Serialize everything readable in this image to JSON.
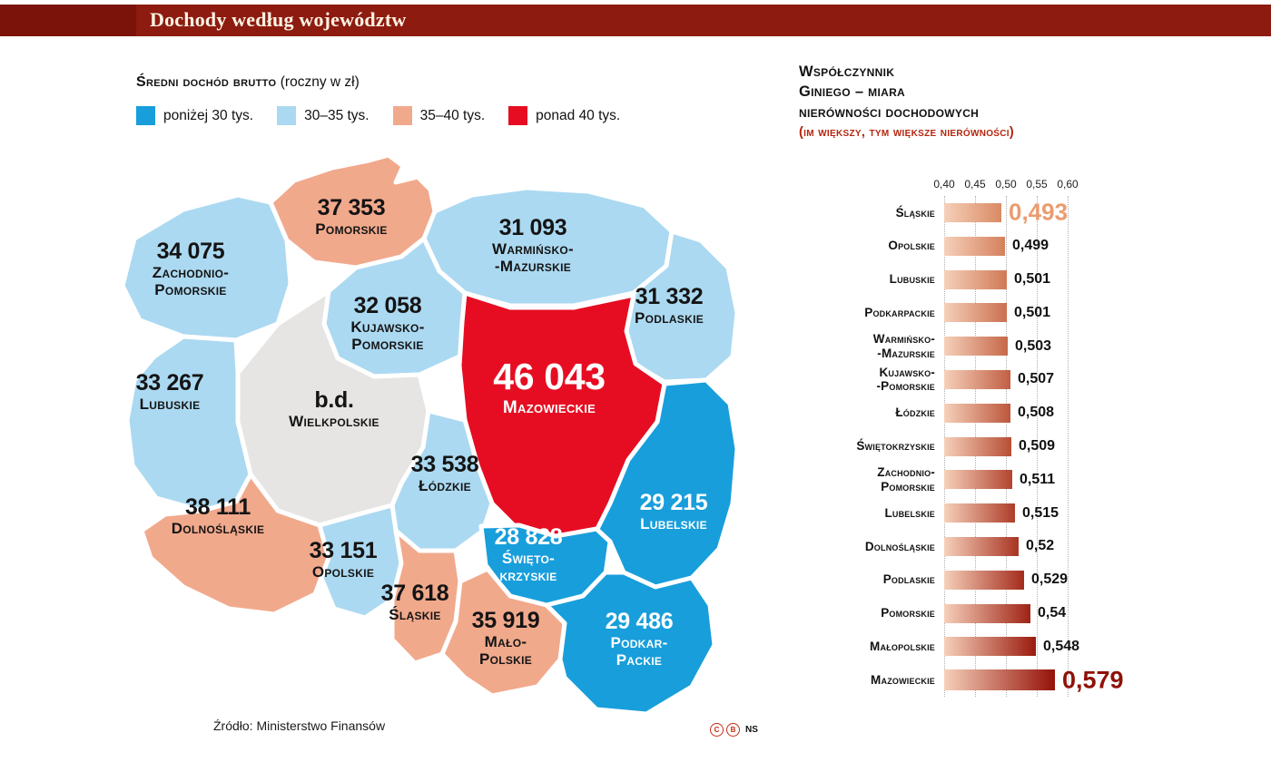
{
  "header": {
    "title": "Dochody według województw"
  },
  "map_legend": {
    "title": "Średni dochód brutto",
    "title_suffix": "(roczny w zł)",
    "items": [
      {
        "label": "poniżej 30 tys.",
        "color": "#189edb"
      },
      {
        "label": "30–35 tys.",
        "color": "#abd9f1"
      },
      {
        "label": "35–40 tys.",
        "color": "#f1a98c"
      },
      {
        "label": "ponad 40 tys.",
        "color": "#e60d22"
      }
    ],
    "no_data_color": "#e6e5e3"
  },
  "source": "Źródło: Ministerstwo Finansów",
  "credits": "NS",
  "gini": {
    "title": "Współczynnik\nGiniego  – miara\nnierówności dochodowych",
    "subtitle": "(im większy, tym większe nierówności)",
    "axis_ticks": [
      "0,40",
      "0,45",
      "0,50",
      "0,55",
      "0,60"
    ]
  },
  "chart_data": [
    {
      "type": "choropleth",
      "title": "Średni dochód brutto (roczny w zł)",
      "legend_categories": [
        "poniżej 30 tys.",
        "30–35 tys.",
        "35–40 tys.",
        "ponad 40 tys."
      ],
      "regions": [
        {
          "id": "zachodniopomorskie",
          "name": "Zachodnio-\nPomorskie",
          "value_display": "34 075",
          "value": 34075,
          "category": 1
        },
        {
          "id": "pomorskie",
          "name": "Pomorskie",
          "value_display": "37 353",
          "value": 37353,
          "category": 2
        },
        {
          "id": "warminsko",
          "name": "Warmińsko-\n-Mazurskie",
          "value_display": "31 093",
          "value": 31093,
          "category": 1
        },
        {
          "id": "podlaskie",
          "name": "Podlaskie",
          "value_display": "31 332",
          "value": 31332,
          "category": 1
        },
        {
          "id": "kujawsko",
          "name": "Kujawsko-\nPomorskie",
          "value_display": "32 058",
          "value": 32058,
          "category": 1
        },
        {
          "id": "wielkopolskie",
          "name": "Wielkpolskie",
          "value_display": "b.d.",
          "value": null,
          "category": null
        },
        {
          "id": "lubuskie",
          "name": "Lubuskie",
          "value_display": "33 267",
          "value": 33267,
          "category": 1
        },
        {
          "id": "mazowieckie",
          "name": "Mazowieckie",
          "value_display": "46 043",
          "value": 46043,
          "category": 3
        },
        {
          "id": "lodzkie",
          "name": "Łódzkie",
          "value_display": "33 538",
          "value": 33538,
          "category": 1
        },
        {
          "id": "lubelskie",
          "name": "Lubelskie",
          "value_display": "29 215",
          "value": 29215,
          "category": 0
        },
        {
          "id": "dolnoslaskie",
          "name": "Dolnośląskie",
          "value_display": "38 111",
          "value": 38111,
          "category": 2
        },
        {
          "id": "opolskie",
          "name": "Opolskie",
          "value_display": "33 151",
          "value": 33151,
          "category": 1
        },
        {
          "id": "swietokrzyskie",
          "name": "Święto-\nkrzyskie",
          "value_display": "28 828",
          "value": 28828,
          "category": 0
        },
        {
          "id": "slaskie",
          "name": "Śląskie",
          "value_display": "37 618",
          "value": 37618,
          "category": 2
        },
        {
          "id": "malopolskie",
          "name": "Mało-\nPolskie",
          "value_display": "35 919",
          "value": 35919,
          "category": 2
        },
        {
          "id": "podkarpackie",
          "name": "Podkar-\nPackie",
          "value_display": "29 486",
          "value": 29486,
          "category": 0
        }
      ]
    },
    {
      "type": "bar",
      "title": "Współczynnik Giniego – miara nierówności dochodowych",
      "xlim": [
        0.4,
        0.6
      ],
      "x_ticks": [
        0.4,
        0.45,
        0.5,
        0.55,
        0.6
      ],
      "categories": [
        "Śląskie",
        "Opolskie",
        "Lubuskie",
        "Podkarpackie",
        "Warmińsko-\n-Mazurskie",
        "Kujawsko-\n-Pomorskie",
        "Łódzkie",
        "Świętokrzyskie",
        "Zachodnio-\nPomorskie",
        "Lubelskie",
        "Dolnośląskie",
        "Podlaskie",
        "Pomorskie",
        "Małopolskie",
        "Mazowieckie"
      ],
      "values": [
        0.493,
        0.499,
        0.501,
        0.501,
        0.503,
        0.507,
        0.508,
        0.509,
        0.511,
        0.515,
        0.52,
        0.529,
        0.54,
        0.548,
        0.579
      ],
      "value_labels": [
        "0,493",
        "0,499",
        "0,501",
        "0,501",
        "0,503",
        "0,507",
        "0,508",
        "0,509",
        "0,511",
        "0,515",
        "0,52",
        "0,529",
        "0,54",
        "0,548",
        "0,579"
      ]
    }
  ]
}
